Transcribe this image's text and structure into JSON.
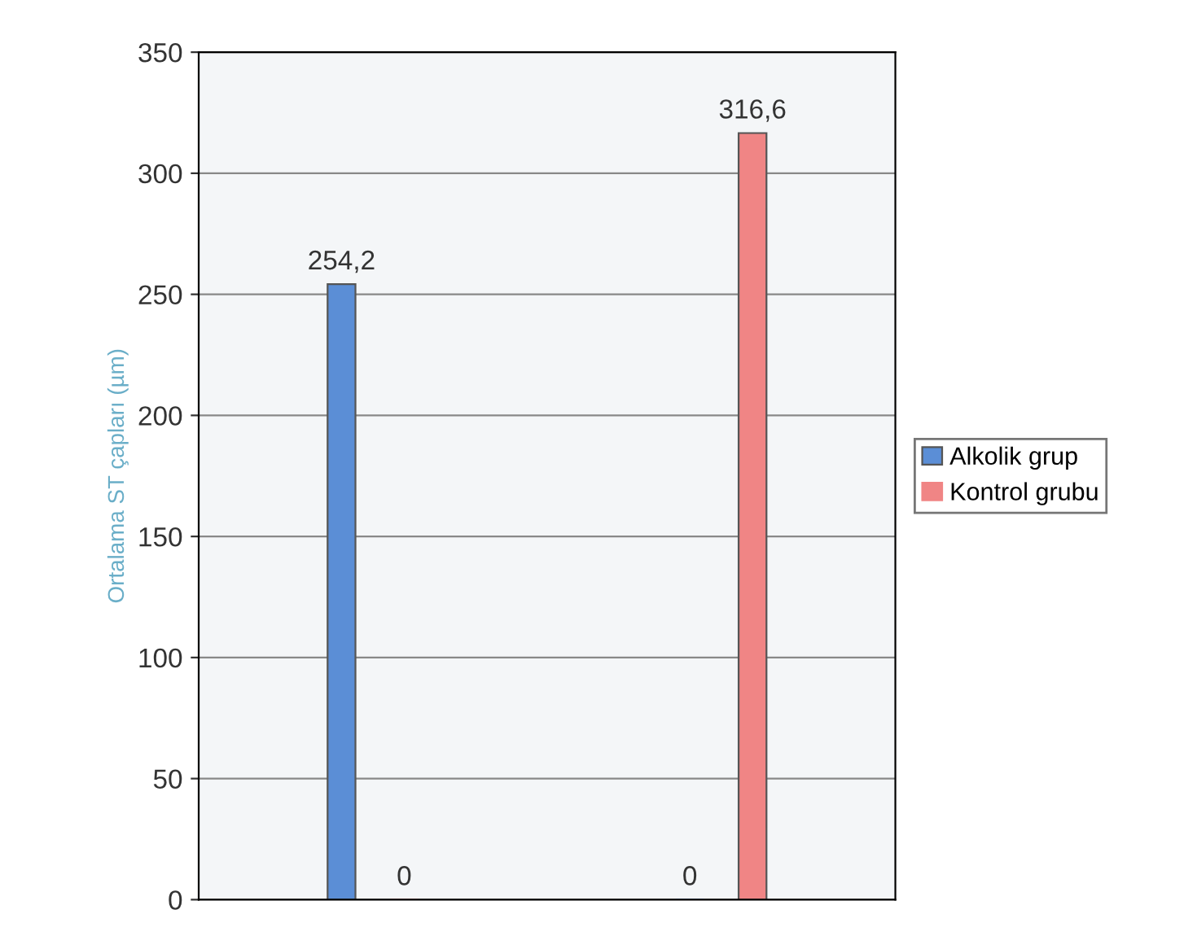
{
  "chart_data": {
    "type": "bar",
    "ylabel": "Ortalama ST çapları (µm)",
    "categories": [
      null,
      null
    ],
    "series": [
      {
        "name": "Alkolik grup",
        "color": "#5b8ed6",
        "values": [
          254.2,
          0
        ],
        "value_labels": [
          "254,2",
          "0"
        ]
      },
      {
        "name": "Kontrol grubu",
        "color": "#f08585",
        "values": [
          0,
          316.6
        ],
        "value_labels": [
          "0",
          "316,6"
        ]
      }
    ],
    "ylim": [
      0,
      350
    ],
    "yticks": [
      0,
      50,
      100,
      150,
      200,
      250,
      300,
      350
    ],
    "grid": "y",
    "legend": "right"
  }
}
